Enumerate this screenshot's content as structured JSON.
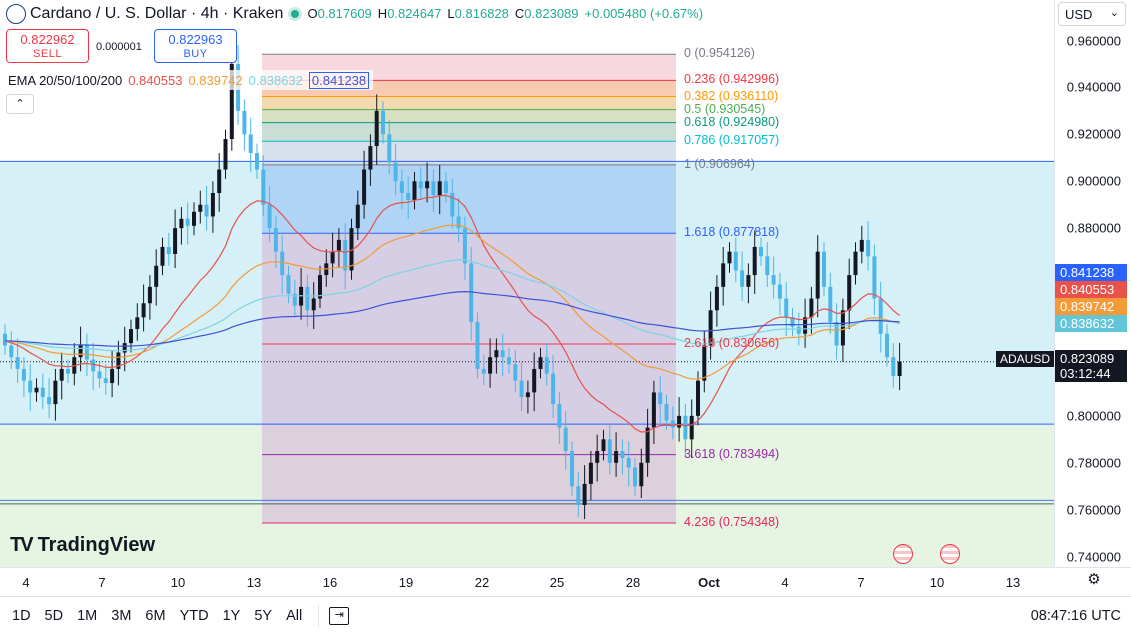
{
  "header": {
    "symbol_title": "Cardano / U. S. Dollar · 4h · Kraken",
    "ohlc": {
      "o_label": "O",
      "o": "0.817609",
      "h_label": "H",
      "h": "0.824647",
      "l_label": "L",
      "l": "0.816828",
      "c_label": "C",
      "c": "0.823089",
      "change": "+0.005480 (+0.67%)"
    }
  },
  "trade": {
    "sell_price": "0.822962",
    "sell_label": "SELL",
    "spread": "0.000001",
    "buy_price": "0.822963",
    "buy_label": "BUY"
  },
  "indicator": {
    "name": "EMA 20/50/100/200",
    "v20": "0.840553",
    "v50": "0.839742",
    "v100": "0.838632",
    "v200": "0.841238",
    "collapse_icon": "chevron-up-icon",
    "collapse_glyph": "⌃"
  },
  "fib": [
    {
      "label": "0 (0.954126)",
      "value": 0.954126,
      "color": "#787b86"
    },
    {
      "label": "0.236 (0.942996)",
      "value": 0.942996,
      "color": "#f23645"
    },
    {
      "label": "0.382 (0.936110)",
      "value": 0.93611,
      "color": "#ff9800"
    },
    {
      "label": "0.5 (0.930545)",
      "value": 0.930545,
      "color": "#4caf50"
    },
    {
      "label": "0.618 (0.924980)",
      "value": 0.92498,
      "color": "#089981"
    },
    {
      "label": "0.786 (0.917057)",
      "value": 0.917057,
      "color": "#00bcd4"
    },
    {
      "label": "1 (0.906964)",
      "value": 0.906964,
      "color": "#787b86"
    },
    {
      "label": "1.618 (0.877818)",
      "value": 0.877818,
      "color": "#2962ff"
    },
    {
      "label": "2.618 (0.830656)",
      "value": 0.830656,
      "color": "#f23645"
    },
    {
      "label": "3.618 (0.783494)",
      "value": 0.783494,
      "color": "#9c27b0"
    },
    {
      "label": "4.236 (0.754348)",
      "value": 0.754348,
      "color": "#e91e63"
    }
  ],
  "price_axis": {
    "currency": "USD",
    "currency_chevron": "⌄",
    "labels": [
      "0.960000",
      "0.940000",
      "0.920000",
      "0.900000",
      "0.880000",
      "0.860000",
      "0.840000",
      "0.820000",
      "0.800000",
      "0.780000",
      "0.760000",
      "0.740000"
    ],
    "badges": [
      {
        "text": "0.841238",
        "color": "#2962ff",
        "value": 0.841238
      },
      {
        "text": "0.840553",
        "color": "#e8524a",
        "value": 0.840553
      },
      {
        "text": "0.839742",
        "color": "#f29b38",
        "value": 0.839742
      },
      {
        "text": "0.838632",
        "color": "#63c6d8",
        "value": 0.838632
      }
    ],
    "current_price": "0.823089",
    "countdown": "03:12:44",
    "symbol_tag": "ADAUSD"
  },
  "time_axis": {
    "labels": [
      "4",
      "7",
      "10",
      "13",
      "16",
      "19",
      "22",
      "25",
      "28",
      "Oct",
      "4",
      "7",
      "10",
      "13"
    ]
  },
  "timeframes": [
    "1D",
    "5D",
    "1M",
    "3M",
    "6M",
    "YTD",
    "1Y",
    "5Y",
    "All"
  ],
  "compare_icon": "compare-icon",
  "compare_glyph": "⇥",
  "settings_glyph": "⚙",
  "clock": "08:47:16 UTC",
  "logo": {
    "text": "TradingView",
    "mark": "TV"
  },
  "colors": {
    "up": "#131722",
    "down": "#4db6e8",
    "ema20": "#e8524a",
    "ema50": "#f29b38",
    "ema100": "#7fd3e2",
    "ema200": "#3f51d8",
    "rect_blue": "#bbdefb",
    "rect_red": "#f8bbd0"
  },
  "chart_data": {
    "type": "candlestick",
    "symbol": "ADAUSD",
    "interval": "4h",
    "ylim": [
      0.735,
      0.97
    ],
    "closes": [
      0.83,
      0.825,
      0.82,
      0.815,
      0.81,
      0.812,
      0.808,
      0.805,
      0.815,
      0.82,
      0.818,
      0.825,
      0.83,
      0.824,
      0.819,
      0.816,
      0.814,
      0.82,
      0.827,
      0.831,
      0.837,
      0.842,
      0.848,
      0.855,
      0.864,
      0.872,
      0.869,
      0.88,
      0.884,
      0.881,
      0.887,
      0.89,
      0.885,
      0.895,
      0.905,
      0.918,
      0.95,
      0.93,
      0.92,
      0.912,
      0.905,
      0.89,
      0.88,
      0.87,
      0.86,
      0.852,
      0.847,
      0.855,
      0.845,
      0.85,
      0.86,
      0.865,
      0.87,
      0.875,
      0.862,
      0.88,
      0.89,
      0.905,
      0.915,
      0.93,
      0.92,
      0.908,
      0.9,
      0.895,
      0.892,
      0.9,
      0.897,
      0.9,
      0.894,
      0.9,
      0.895,
      0.885,
      0.88,
      0.865,
      0.84,
      0.82,
      0.818,
      0.825,
      0.828,
      0.825,
      0.822,
      0.815,
      0.808,
      0.81,
      0.82,
      0.825,
      0.818,
      0.805,
      0.795,
      0.785,
      0.77,
      0.762,
      0.771,
      0.78,
      0.785,
      0.79,
      0.78,
      0.785,
      0.782,
      0.778,
      0.77,
      0.78,
      0.795,
      0.81,
      0.805,
      0.798,
      0.795,
      0.8,
      0.79,
      0.8,
      0.815,
      0.83,
      0.845,
      0.855,
      0.865,
      0.87,
      0.862,
      0.855,
      0.86,
      0.872,
      0.868,
      0.86,
      0.856,
      0.85,
      0.842,
      0.838,
      0.835,
      0.842,
      0.85,
      0.87,
      0.855,
      0.84,
      0.83,
      0.845,
      0.86,
      0.87,
      0.875,
      0.868,
      0.85,
      0.835,
      0.825,
      0.817,
      0.8231
    ],
    "ema": {
      "ema20": 0.840553,
      "ema50": 0.839742,
      "ema100": 0.838632,
      "ema200": 0.841238
    }
  }
}
